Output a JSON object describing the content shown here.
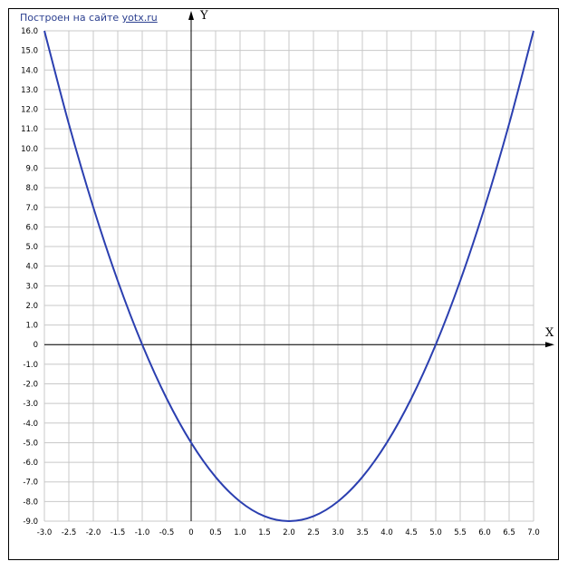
{
  "credit": {
    "text": "Построен на сайте",
    "link": "yotx.ru"
  },
  "chart_data": {
    "type": "line",
    "title": "",
    "xlabel": "X",
    "ylabel": "Y",
    "xlim": [
      -3.0,
      7.0
    ],
    "ylim": [
      -9.0,
      16.0
    ],
    "grid": true,
    "grid_step_x": 0.5,
    "grid_step_y": 1.0,
    "x_ticks": [
      "-3.0",
      "-2.5",
      "-2.0",
      "-1.5",
      "-1.0",
      "-0.5",
      "0",
      "0.5",
      "1.0",
      "1.5",
      "2.0",
      "2.5",
      "3.0",
      "3.5",
      "4.0",
      "4.5",
      "5.0",
      "5.5",
      "6.0",
      "6.5",
      "7.0"
    ],
    "y_ticks": [
      "16.0",
      "15.0",
      "14.0",
      "13.0",
      "12.0",
      "11.0",
      "10.0",
      "9.0",
      "8.0",
      "7.0",
      "6.0",
      "5.0",
      "4.0",
      "3.0",
      "2.0",
      "1.0",
      "0",
      "-1.0",
      "-2.0",
      "-3.0",
      "-4.0",
      "-5.0",
      "-6.0",
      "-7.0",
      "-8.0",
      "-9.0"
    ],
    "series": [
      {
        "color": "#2b3fb0",
        "x": [
          -3.0,
          -2.5,
          -2.0,
          -1.5,
          -1.0,
          -0.5,
          0.0,
          0.5,
          1.0,
          1.5,
          2.0,
          2.5,
          3.0,
          3.5,
          4.0,
          4.5,
          5.0,
          5.5,
          6.0,
          6.5,
          7.0
        ],
        "y": [
          16.0,
          11.25,
          7.0,
          3.25,
          0.0,
          -2.75,
          -5.0,
          -6.75,
          -8.0,
          -8.75,
          -9.0,
          -8.75,
          -8.0,
          -6.75,
          -5.0,
          -2.75,
          0.0,
          3.25,
          7.0,
          11.25,
          16.0
        ]
      }
    ],
    "grid_color": "#c8c8c8",
    "axis_color": "#000000"
  }
}
